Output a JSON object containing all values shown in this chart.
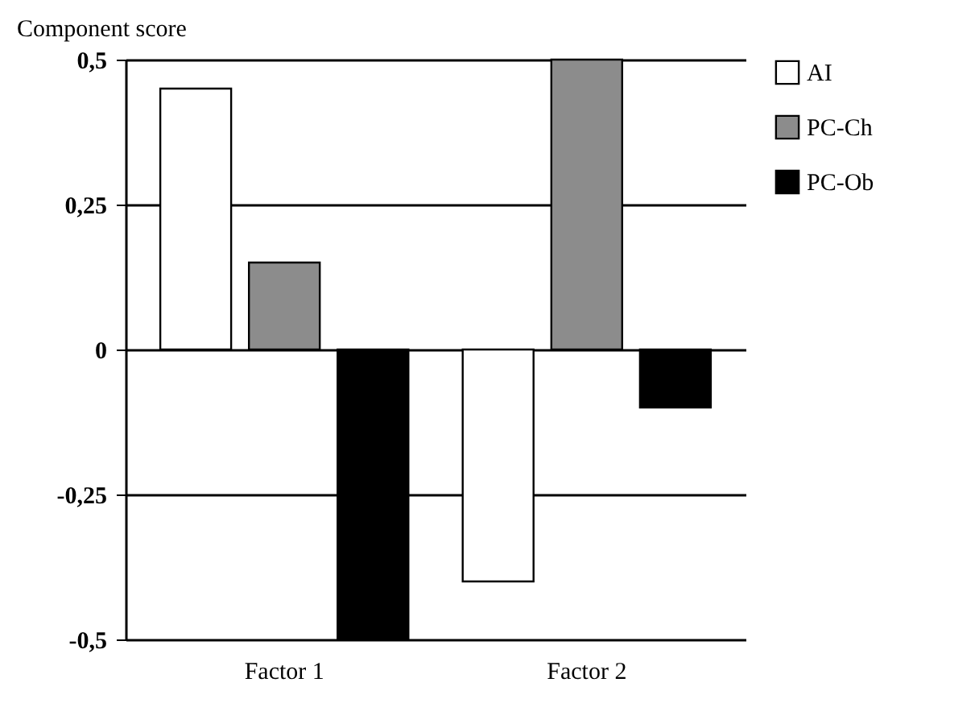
{
  "chart_data": {
    "type": "bar",
    "ylabel": "Component score",
    "categories": [
      "Factor 1",
      "Factor 2"
    ],
    "series": [
      {
        "name": "AI",
        "color": "#ffffff",
        "values": [
          0.45,
          -0.4
        ]
      },
      {
        "name": "PC-Ch",
        "color": "#8c8c8c",
        "values": [
          0.15,
          0.5
        ]
      },
      {
        "name": "PC-Ob",
        "color": "#000000",
        "values": [
          -0.5,
          -0.1
        ]
      }
    ],
    "ylim": [
      -0.5,
      0.5
    ],
    "yticks": [
      {
        "value": -0.5,
        "label": "-0,5"
      },
      {
        "value": -0.25,
        "label": "-0,25"
      },
      {
        "value": 0,
        "label": "0"
      },
      {
        "value": 0.25,
        "label": "0,25"
      },
      {
        "value": 0.5,
        "label": "0,5"
      }
    ],
    "grid": "y",
    "legend": "right"
  }
}
